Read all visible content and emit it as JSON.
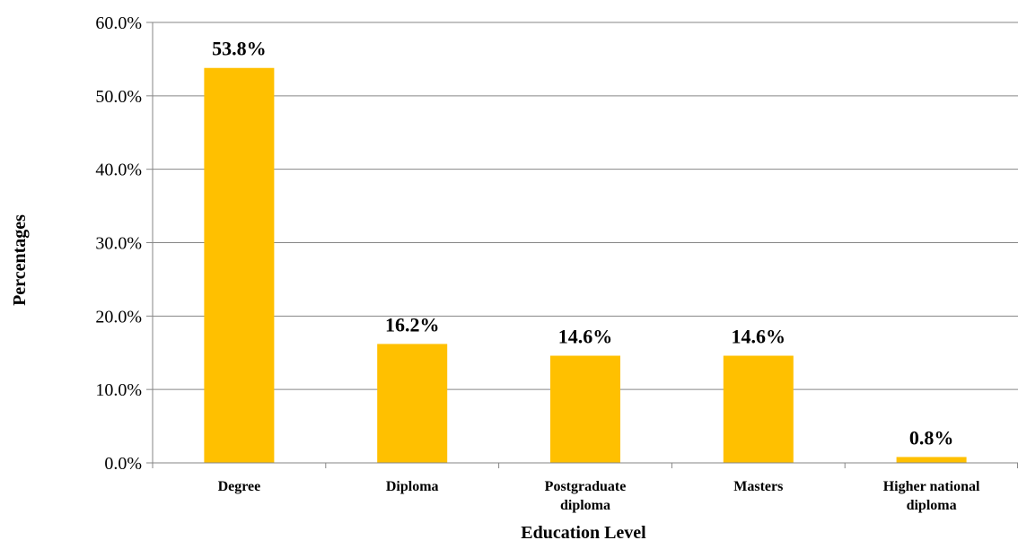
{
  "chart_data": {
    "type": "bar",
    "categories": [
      "Degree",
      "Diploma",
      "Postgraduate diploma",
      "Masters",
      "Higher national diploma"
    ],
    "category_lines": [
      [
        "Degree"
      ],
      [
        "Diploma"
      ],
      [
        "Postgraduate",
        "diploma"
      ],
      [
        "Masters"
      ],
      [
        "Higher national",
        "diploma"
      ]
    ],
    "values": [
      53.8,
      16.2,
      14.6,
      14.6,
      0.8
    ],
    "data_labels": [
      "53.8%",
      "16.2%",
      "14.6%",
      "14.6%",
      "0.8%"
    ],
    "xlabel": "Education Level",
    "ylabel": "Percentages",
    "ylim": [
      0,
      60
    ],
    "yticks": [
      0,
      10,
      20,
      30,
      40,
      50,
      60
    ],
    "ytick_labels": [
      "0.0%",
      "10.0%",
      "20.0%",
      "30.0%",
      "40.0%",
      "50.0%",
      "60.0%"
    ],
    "grid": true,
    "legend": "none",
    "bar_color": "#FFC000",
    "grid_color": "#868686"
  }
}
